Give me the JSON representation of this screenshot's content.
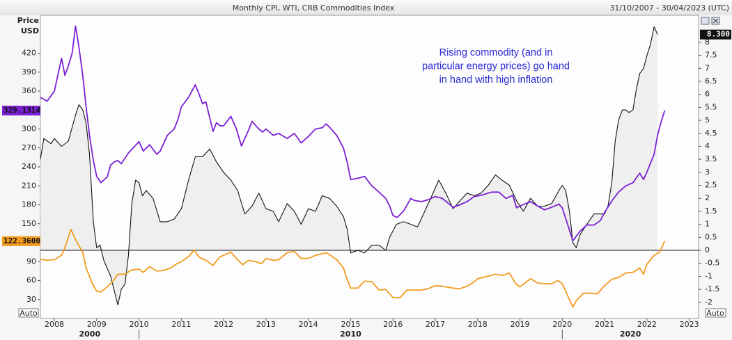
{
  "chart_data": {
    "type": "line",
    "title": "Monthly CPI, WTI, CRB Commodities Index",
    "date_range": "31/10/2007 - 30/04/2023 (UTC)",
    "y_axis_title": [
      "Price",
      "USD"
    ],
    "annotation": [
      "Rising commodity (and in",
      "particular energy prices) go hand",
      "in hand with high inflation"
    ],
    "y_scale_mode": "Auto",
    "y2_scale_mode": "Auto",
    "xlim": [
      2007.67,
      2023.22
    ],
    "xticks": [
      2008,
      2009,
      2010,
      2011,
      2012,
      2013,
      2014,
      2015,
      2016,
      2017,
      2018,
      2019,
      2020,
      2021,
      2022,
      2023
    ],
    "decade_ticks": [
      2000,
      2010,
      2020
    ],
    "ylim": [
      0,
      480
    ],
    "yticks": [
      30,
      60,
      90,
      120,
      150,
      180,
      210,
      240,
      270,
      300,
      330,
      360,
      390,
      420
    ],
    "y2lim": [
      -2.62,
      9.04
    ],
    "y2ticks": [
      -2,
      -1.5,
      -1,
      -0.5,
      0,
      0.5,
      1,
      1.5,
      2,
      2.5,
      3,
      3.5,
      4,
      4.5,
      5,
      5.5,
      6,
      6.5,
      7,
      7.5,
      8
    ],
    "y2_reference_line": 0,
    "grid": false,
    "series": [
      {
        "color": "#111111",
        "axis": "y2",
        "fill": "#e9e9e9",
        "tag": "8.300",
        "x": [
          2007.67,
          2007.75,
          2007.92,
          2008.0,
          2008.17,
          2008.33,
          2008.5,
          2008.58,
          2008.67,
          2008.75,
          2008.83,
          2008.92,
          2009.0,
          2009.08,
          2009.17,
          2009.33,
          2009.5,
          2009.58,
          2009.67,
          2009.75,
          2009.83,
          2009.92,
          2010.0,
          2010.08,
          2010.17,
          2010.33,
          2010.5,
          2010.67,
          2010.83,
          2011.0,
          2011.17,
          2011.33,
          2011.5,
          2011.67,
          2011.83,
          2012.0,
          2012.17,
          2012.33,
          2012.5,
          2012.67,
          2012.83,
          2013.0,
          2013.17,
          2013.3,
          2013.5,
          2013.67,
          2013.83,
          2014.0,
          2014.17,
          2014.33,
          2014.5,
          2014.67,
          2014.83,
          2014.92,
          2015.0,
          2015.17,
          2015.33,
          2015.5,
          2015.67,
          2015.83,
          2015.92,
          2016.08,
          2016.25,
          2016.42,
          2016.58,
          2016.75,
          2016.92,
          2017.08,
          2017.25,
          2017.42,
          2017.58,
          2017.75,
          2017.92,
          2018.08,
          2018.25,
          2018.42,
          2018.58,
          2018.75,
          2018.92,
          2019.08,
          2019.25,
          2019.42,
          2019.58,
          2019.75,
          2019.92,
          2020.0,
          2020.08,
          2020.17,
          2020.25,
          2020.33,
          2020.42,
          2020.58,
          2020.75,
          2020.92,
          2021.0,
          2021.08,
          2021.17,
          2021.25,
          2021.33,
          2021.42,
          2021.5,
          2021.58,
          2021.67,
          2021.75,
          2021.83,
          2021.92,
          2022.0,
          2022.08,
          2022.17,
          2022.25
        ],
        "values": [
          3.5,
          4.3,
          4.1,
          4.3,
          4.0,
          4.2,
          5.2,
          5.6,
          5.4,
          4.9,
          3.7,
          1.1,
          0.1,
          0.2,
          -0.4,
          -1.0,
          -2.1,
          -1.5,
          -1.3,
          -0.2,
          1.8,
          2.7,
          2.6,
          2.1,
          2.3,
          2.0,
          1.1,
          1.1,
          1.2,
          1.6,
          2.7,
          3.6,
          3.6,
          3.9,
          3.4,
          3.0,
          2.7,
          2.3,
          1.4,
          1.7,
          2.2,
          1.6,
          1.5,
          1.1,
          1.8,
          1.5,
          1.0,
          1.6,
          1.5,
          2.1,
          2.0,
          1.7,
          1.3,
          0.8,
          -0.1,
          0,
          -0.1,
          0.2,
          0.2,
          0,
          0.5,
          1.0,
          1.1,
          1.0,
          0.9,
          1.5,
          2.1,
          2.7,
          2.2,
          1.6,
          1.9,
          2.2,
          2.1,
          2.2,
          2.5,
          2.9,
          2.7,
          2.5,
          1.9,
          1.5,
          2.0,
          1.7,
          1.7,
          1.8,
          2.3,
          2.5,
          2.3,
          1.5,
          0.3,
          0.1,
          0.6,
          1.0,
          1.4,
          1.4,
          1.4,
          1.7,
          2.6,
          4.2,
          5.0,
          5.4,
          5.4,
          5.3,
          5.4,
          6.2,
          6.8,
          7.0,
          7.5,
          7.9,
          8.6,
          8.3
        ]
      },
      {
        "color": "#7b1fd4",
        "axis": "y",
        "tag": "329.1314",
        "x": [
          2007.67,
          2007.83,
          2008.0,
          2008.17,
          2008.25,
          2008.33,
          2008.42,
          2008.5,
          2008.58,
          2008.67,
          2008.75,
          2008.83,
          2008.92,
          2009.0,
          2009.1,
          2009.25,
          2009.33,
          2009.42,
          2009.5,
          2009.58,
          2009.75,
          2009.83,
          2010.0,
          2010.1,
          2010.25,
          2010.42,
          2010.5,
          2010.67,
          2010.83,
          2010.92,
          2011.0,
          2011.17,
          2011.33,
          2011.42,
          2011.5,
          2011.58,
          2011.75,
          2011.83,
          2011.92,
          2012.0,
          2012.17,
          2012.3,
          2012.42,
          2012.58,
          2012.67,
          2012.83,
          2012.92,
          2013.0,
          2013.17,
          2013.3,
          2013.5,
          2013.67,
          2013.83,
          2014.0,
          2014.17,
          2014.33,
          2014.42,
          2014.5,
          2014.67,
          2014.83,
          2014.92,
          2015.0,
          2015.17,
          2015.33,
          2015.5,
          2015.67,
          2015.83,
          2015.92,
          2016.0,
          2016.1,
          2016.25,
          2016.42,
          2016.5,
          2016.67,
          2016.83,
          2017.0,
          2017.17,
          2017.42,
          2017.58,
          2017.75,
          2017.92,
          2018.08,
          2018.33,
          2018.5,
          2018.67,
          2018.83,
          2018.92,
          2019.0,
          2019.25,
          2019.42,
          2019.58,
          2019.75,
          2019.92,
          2020.0,
          2020.17,
          2020.25,
          2020.42,
          2020.58,
          2020.75,
          2020.9,
          2021.0,
          2021.17,
          2021.33,
          2021.5,
          2021.67,
          2021.83,
          2021.92,
          2022.0,
          2022.17,
          2022.25,
          2022.33,
          2022.42
        ],
        "values": [
          350,
          344,
          360,
          412,
          385,
          400,
          420,
          463,
          430,
          385,
          335,
          290,
          250,
          225,
          215,
          224,
          243,
          248,
          250,
          245,
          262,
          268,
          280,
          265,
          275,
          260,
          265,
          290,
          300,
          315,
          335,
          350,
          370,
          355,
          340,
          343,
          296,
          310,
          305,
          305,
          320,
          300,
          273,
          297,
          312,
          300,
          295,
          300,
          290,
          293,
          285,
          293,
          278,
          288,
          300,
          302,
          308,
          303,
          290,
          270,
          247,
          220,
          222,
          225,
          210,
          200,
          190,
          178,
          163,
          160,
          170,
          190,
          187,
          185,
          188,
          193,
          190,
          176,
          180,
          185,
          193,
          195,
          200,
          200,
          190,
          195,
          175,
          178,
          185,
          178,
          172,
          176,
          181,
          175,
          140,
          123,
          138,
          148,
          148,
          155,
          168,
          186,
          200,
          210,
          215,
          230,
          220,
          232,
          260,
          290,
          310,
          329.1314
        ]
      },
      {
        "color": "#f29a1d",
        "axis": "y",
        "tag": "122.3600",
        "x": [
          2007.67,
          2007.83,
          2008.0,
          2008.17,
          2008.25,
          2008.39,
          2008.5,
          2008.58,
          2008.67,
          2008.75,
          2008.9,
          2009.0,
          2009.1,
          2009.25,
          2009.4,
          2009.5,
          2009.67,
          2009.83,
          2010.0,
          2010.1,
          2010.25,
          2010.42,
          2010.58,
          2010.75,
          2010.9,
          2011.0,
          2011.17,
          2011.3,
          2011.42,
          2011.58,
          2011.75,
          2011.9,
          2012.0,
          2012.17,
          2012.3,
          2012.45,
          2012.58,
          2012.75,
          2012.9,
          2013.0,
          2013.17,
          2013.3,
          2013.5,
          2013.67,
          2013.83,
          2014.0,
          2014.17,
          2014.42,
          2014.5,
          2014.67,
          2014.83,
          2014.9,
          2015.0,
          2015.17,
          2015.33,
          2015.5,
          2015.67,
          2015.83,
          2016.0,
          2016.17,
          2016.33,
          2016.5,
          2016.67,
          2016.83,
          2017.0,
          2017.17,
          2017.42,
          2017.58,
          2017.75,
          2017.9,
          2018.0,
          2018.25,
          2018.42,
          2018.58,
          2018.75,
          2018.9,
          2019.0,
          2019.25,
          2019.42,
          2019.58,
          2019.75,
          2019.9,
          2020.0,
          2020.17,
          2020.25,
          2020.33,
          2020.5,
          2020.67,
          2020.83,
          2021.0,
          2021.17,
          2021.33,
          2021.5,
          2021.67,
          2021.83,
          2021.92,
          2022.0,
          2022.17,
          2022.3,
          2022.42
        ],
        "values": [
          94,
          92,
          93,
          100,
          112,
          141,
          125,
          115,
          105,
          80,
          55,
          43,
          42,
          50,
          60,
          70,
          70,
          77,
          78,
          73,
          82,
          75,
          76,
          80,
          87,
          90,
          98,
          108,
          97,
          92,
          84,
          97,
          100,
          105,
          95,
          85,
          92,
          90,
          87,
          95,
          92,
          93,
          104,
          106,
          95,
          95,
          100,
          104,
          101,
          93,
          80,
          65,
          48,
          48,
          59,
          58,
          45,
          46,
          33,
          33,
          45,
          45,
          45,
          47,
          52,
          51,
          48,
          47,
          51,
          57,
          63,
          67,
          70,
          68,
          72,
          55,
          50,
          63,
          56,
          55,
          55,
          60,
          55,
          30,
          18,
          28,
          40,
          40,
          39,
          52,
          62,
          65,
          72,
          73,
          80,
          70,
          86,
          100,
          105,
          122.36
        ]
      }
    ]
  }
}
